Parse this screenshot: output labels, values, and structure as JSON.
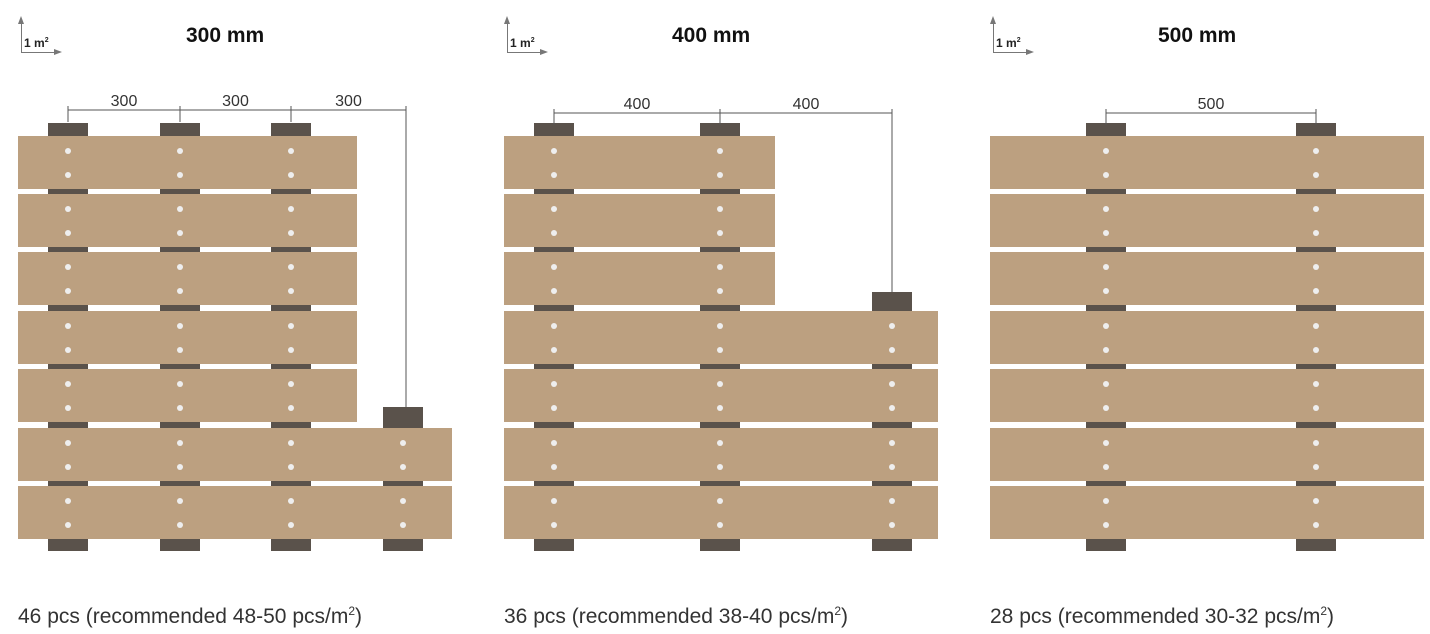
{
  "panels": [
    {
      "title": "300 mm",
      "badge": "1 m",
      "dimensions": [
        "300",
        "300",
        "300"
      ],
      "caption_main": "46 pcs (recommended 48-50 pcs/m",
      "caption_sup": "2",
      "caption_end": ")"
    },
    {
      "title": "400 mm",
      "badge": "1 m",
      "dimensions": [
        "400",
        "400"
      ],
      "caption_main": "36 pcs (recommended 38-40 pcs/m",
      "caption_sup": "2",
      "caption_end": ")"
    },
    {
      "title": "500 mm",
      "badge": "1 m",
      "dimensions": [
        "500"
      ],
      "caption_main": "28 pcs (recommended 30-32 pcs/m",
      "caption_sup": "2",
      "caption_end": ")"
    }
  ],
  "colors": {
    "board": "#bca080",
    "joist": "#5a524b",
    "screw": "#eeeeee",
    "dim_line": "#555555"
  }
}
